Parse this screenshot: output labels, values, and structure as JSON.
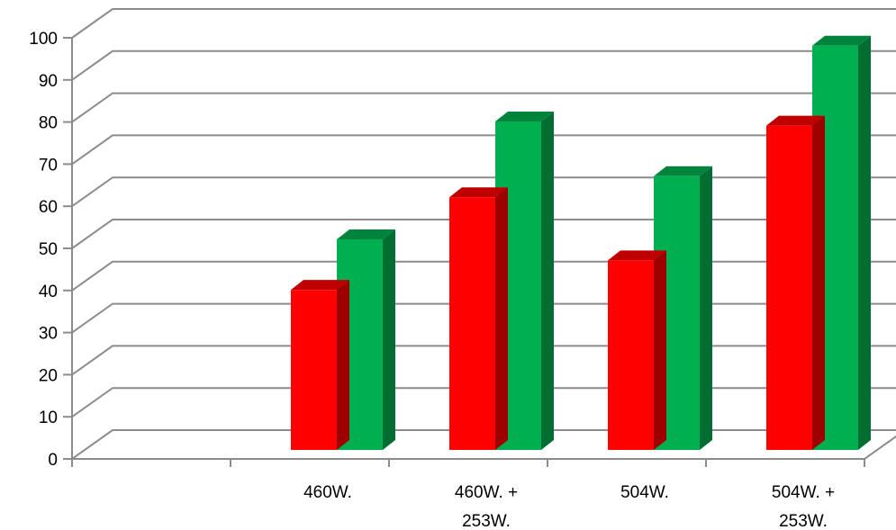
{
  "chart_data": {
    "type": "bar",
    "categories": [
      "",
      "460W.",
      "460W. + 253W.",
      "504W.",
      "504W. + 253W."
    ],
    "category_lines": [
      [
        ""
      ],
      [
        "460W."
      ],
      [
        "460W. +",
        "253W."
      ],
      [
        "504W."
      ],
      [
        "504W. +",
        "253W."
      ]
    ],
    "series": [
      {
        "color": "#ff0000",
        "values": [
          null,
          38,
          60,
          45,
          77
        ]
      },
      {
        "color": "#00b050",
        "values": [
          null,
          50,
          78,
          65,
          96
        ]
      }
    ],
    "ylim": [
      0,
      100
    ],
    "yticks": [
      0,
      10,
      20,
      30,
      40,
      50,
      60,
      70,
      80,
      90,
      100
    ],
    "grid": true,
    "legend": "none"
  }
}
